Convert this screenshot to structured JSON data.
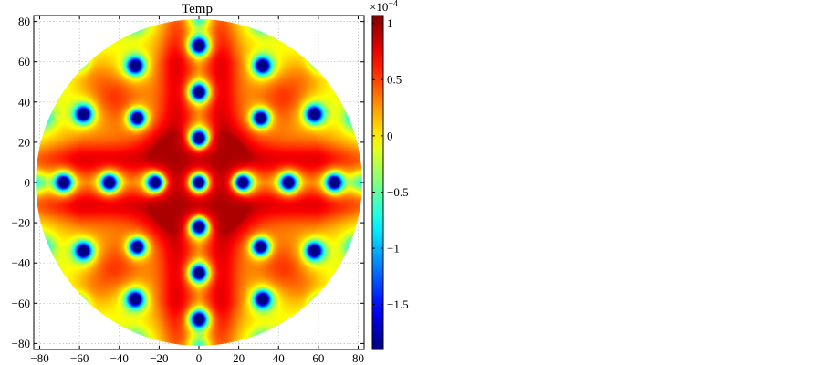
{
  "chart_data": {
    "type": "heatmap",
    "title": "Temp",
    "xlabel": "",
    "ylabel": "",
    "xlim": [
      -83,
      83
    ],
    "ylim": [
      -83,
      83
    ],
    "x_ticks": [
      -80,
      -60,
      -40,
      -20,
      0,
      20,
      40,
      60,
      80
    ],
    "y_ticks": [
      80,
      60,
      40,
      20,
      0,
      -20,
      -40,
      -60,
      -80
    ],
    "grid": true,
    "domain_radius": 82,
    "field": {
      "base_value": 0.25,
      "ridge_value": 0.95,
      "hole_value": -1.8,
      "units": "x10^-4"
    },
    "holes": [
      {
        "x": 0,
        "y": 68
      },
      {
        "x": 0,
        "y": 45
      },
      {
        "x": 0,
        "y": 22
      },
      {
        "x": 0,
        "y": 0
      },
      {
        "x": 0,
        "y": -22
      },
      {
        "x": 0,
        "y": -45
      },
      {
        "x": 0,
        "y": -68
      },
      {
        "x": -68,
        "y": 0
      },
      {
        "x": -45,
        "y": 0
      },
      {
        "x": -22,
        "y": 0
      },
      {
        "x": 22,
        "y": 0
      },
      {
        "x": 45,
        "y": 0
      },
      {
        "x": 68,
        "y": 0
      },
      {
        "x": -32,
        "y": 58
      },
      {
        "x": 32,
        "y": 58
      },
      {
        "x": -58,
        "y": 34
      },
      {
        "x": -31,
        "y": 32
      },
      {
        "x": 31,
        "y": 32
      },
      {
        "x": 58,
        "y": 34
      },
      {
        "x": -58,
        "y": -34
      },
      {
        "x": -31,
        "y": -32
      },
      {
        "x": 31,
        "y": -32
      },
      {
        "x": 58,
        "y": -34
      },
      {
        "x": -32,
        "y": -58
      },
      {
        "x": 32,
        "y": -58
      }
    ],
    "edge_spots": [
      {
        "x": -32,
        "y": 79
      },
      {
        "x": 0,
        "y": 82
      },
      {
        "x": 32,
        "y": 79
      },
      {
        "x": -60,
        "y": 60
      },
      {
        "x": 60,
        "y": 60
      },
      {
        "x": -78,
        "y": 32
      },
      {
        "x": 78,
        "y": 32
      },
      {
        "x": -82,
        "y": 0
      },
      {
        "x": 82,
        "y": 0
      },
      {
        "x": -78,
        "y": -32
      },
      {
        "x": 78,
        "y": -32
      },
      {
        "x": -60,
        "y": -60
      },
      {
        "x": 60,
        "y": -60
      },
      {
        "x": -32,
        "y": -79
      },
      {
        "x": 0,
        "y": -82
      },
      {
        "x": 32,
        "y": -79
      }
    ],
    "colorbar": {
      "exponent_label": "×10",
      "exponent": "−4",
      "range": [
        -1.9,
        1.07
      ],
      "ticks": [
        {
          "value": 1,
          "label": "1"
        },
        {
          "value": 0.5,
          "label": "0.5"
        },
        {
          "value": 0,
          "label": "0"
        },
        {
          "value": -0.5,
          "label": "−0.5"
        },
        {
          "value": -1,
          "label": "−1"
        },
        {
          "value": -1.5,
          "label": "−1.5"
        }
      ],
      "colormap": "jet"
    }
  }
}
